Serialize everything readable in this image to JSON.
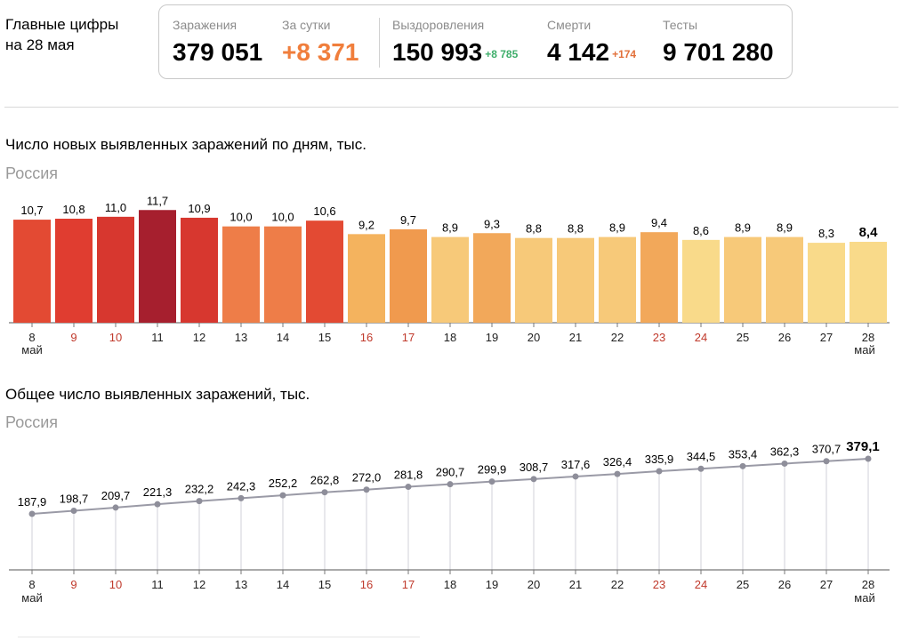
{
  "header": {
    "title_line1": "Главные цифры",
    "title_line2": "на 28 мая"
  },
  "summary": {
    "infections": {
      "label": "Заражения",
      "value": "379 051"
    },
    "daily": {
      "label": "За сутки",
      "value": "+8 371"
    },
    "recovered": {
      "label": "Выздоровления",
      "value": "150 993",
      "delta": "+8 785"
    },
    "deaths": {
      "label": "Смерти",
      "value": "4 142",
      "delta": "+174"
    },
    "tests": {
      "label": "Тесты",
      "value": "9 701 280"
    },
    "colors": {
      "daily": "#f07e3c",
      "recovered_delta": "#3fae6b",
      "deaths_delta": "#e2703a"
    }
  },
  "chart_data": [
    {
      "type": "bar",
      "title": "Число новых выявленных заражений по дням, тыс.",
      "subtitle": "Россия",
      "categories": [
        "8",
        "9",
        "10",
        "11",
        "12",
        "13",
        "14",
        "15",
        "16",
        "17",
        "18",
        "19",
        "20",
        "21",
        "22",
        "23",
        "24",
        "25",
        "26",
        "27",
        "28"
      ],
      "values": [
        10.7,
        10.8,
        11.0,
        11.7,
        10.9,
        10.0,
        10.0,
        10.6,
        9.2,
        9.7,
        8.9,
        9.3,
        8.8,
        8.8,
        8.9,
        9.4,
        8.6,
        8.9,
        8.9,
        8.3,
        8.4
      ],
      "value_labels": [
        "10,7",
        "10,8",
        "11,0",
        "11,7",
        "10,9",
        "10,0",
        "10,0",
        "10,6",
        "9,2",
        "9,7",
        "8,9",
        "9,3",
        "8,8",
        "8,8",
        "8,9",
        "9,4",
        "8,6",
        "8,9",
        "8,9",
        "8,3",
        "8,4"
      ],
      "bar_colors": [
        "#e34a33",
        "#e03d30",
        "#d7372f",
        "#a61f2e",
        "#d7372f",
        "#ee7d48",
        "#ee7d48",
        "#e34a33",
        "#f4b35e",
        "#f09a4e",
        "#f7c979",
        "#f2a85a",
        "#f7c979",
        "#f7c979",
        "#f7c979",
        "#f2a85a",
        "#f9da8a",
        "#f7c979",
        "#f7c979",
        "#f9da8a",
        "#f9da8a"
      ],
      "month_label": "май",
      "red_ticks": [
        "9",
        "10",
        "16",
        "17",
        "23",
        "24"
      ],
      "ylim": [
        0,
        12
      ],
      "grid": false,
      "legend": false
    },
    {
      "type": "line",
      "title": "Общее число выявленных заражений, тыс.",
      "subtitle": "Россия",
      "categories": [
        "8",
        "9",
        "10",
        "11",
        "12",
        "13",
        "14",
        "15",
        "16",
        "17",
        "18",
        "19",
        "20",
        "21",
        "22",
        "23",
        "24",
        "25",
        "26",
        "27",
        "28"
      ],
      "values": [
        187.9,
        198.7,
        209.7,
        221.3,
        232.2,
        242.3,
        252.2,
        262.8,
        272.0,
        281.8,
        290.7,
        299.9,
        308.7,
        317.6,
        326.4,
        335.9,
        344.5,
        353.4,
        362.3,
        370.7,
        379.1
      ],
      "value_labels": [
        "187,9",
        "198,7",
        "209,7",
        "221,3",
        "232,2",
        "242,3",
        "252,2",
        "262,8",
        "272,0",
        "281,8",
        "290,7",
        "299,9",
        "308,7",
        "317,6",
        "326,4",
        "335,9",
        "344,5",
        "353,4",
        "362,3",
        "370,7",
        "379,1"
      ],
      "line_color": "#9a9aa6",
      "month_label": "май",
      "red_ticks": [
        "9",
        "10",
        "16",
        "17",
        "23",
        "24"
      ],
      "ylim": [
        0,
        400
      ],
      "grid": false,
      "legend": false
    }
  ]
}
